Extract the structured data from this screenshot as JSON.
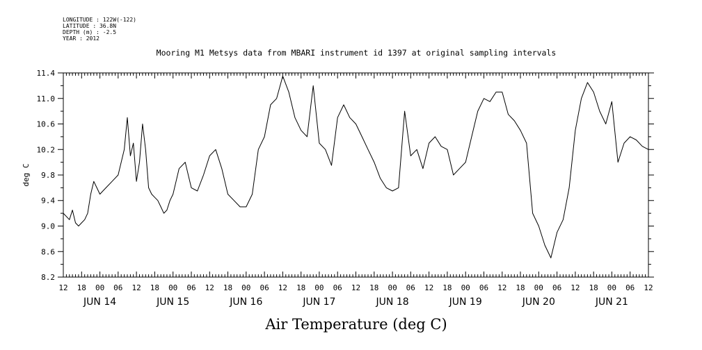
{
  "header": {
    "longitude": "LONGITUDE : 122W(-122)",
    "latitude": "LATITUDE : 36.8N",
    "depth": "DEPTH (m) : -2.5",
    "year": "YEAR : 2012"
  },
  "chart_data": {
    "type": "line",
    "title": "Mooring M1 Metsys data from MBARI instrument id 1397 at original sampling intervals",
    "xlabel": "Air Temperature (deg C)",
    "ylabel": "deg C",
    "ylim": [
      8.2,
      11.4
    ],
    "yticks": [
      "8.2",
      "8.6",
      "9.0",
      "9.4",
      "9.8",
      "10.2",
      "10.6",
      "11.0",
      "11.4"
    ],
    "xlim": [
      "2012-06-13T12:00",
      "2012-06-21T12:00"
    ],
    "hour_tick_labels": [
      "12",
      "18",
      "00",
      "06",
      "12",
      "18",
      "00",
      "06",
      "12",
      "18",
      "00",
      "06",
      "12",
      "18",
      "00",
      "06",
      "12",
      "18",
      "00",
      "06",
      "12",
      "18",
      "00",
      "06",
      "12",
      "18",
      "00",
      "06",
      "12",
      "18",
      "00",
      "06",
      "12"
    ],
    "day_labels": [
      "JUN 14",
      "JUN 15",
      "JUN 16",
      "JUN 17",
      "JUN 18",
      "JUN 19",
      "JUN 20",
      "JUN 21"
    ],
    "grid": false,
    "series": [
      {
        "x_hours_from_jun13_12": [
          0,
          2,
          3,
          4,
          5,
          6,
          7,
          8,
          9,
          10,
          11,
          12,
          13,
          14,
          16,
          18,
          20,
          21,
          22,
          23,
          24,
          25,
          26,
          27,
          28,
          29,
          30,
          31,
          32,
          33,
          34,
          35,
          36,
          38,
          40,
          42,
          44,
          46,
          48,
          50,
          52,
          54,
          56,
          58,
          60,
          62,
          64,
          66,
          68,
          70,
          72,
          74,
          76,
          78,
          80,
          82,
          84,
          86,
          88,
          90,
          92,
          94,
          96,
          98,
          100,
          102,
          104,
          106,
          108,
          110,
          112,
          114,
          116,
          118,
          120,
          122,
          124,
          126,
          128,
          130,
          132,
          134,
          136,
          138,
          140,
          142,
          144,
          146,
          148,
          150,
          152,
          154,
          156,
          158,
          160,
          162,
          164,
          166,
          168,
          170,
          172,
          174,
          176,
          178,
          180,
          182,
          184,
          186,
          188,
          190,
          192
        ],
        "y_deg_c": [
          9.2,
          9.1,
          9.25,
          9.05,
          9.0,
          9.05,
          9.1,
          9.2,
          9.5,
          9.7,
          9.6,
          9.5,
          9.55,
          9.6,
          9.7,
          9.8,
          10.2,
          10.7,
          10.1,
          10.3,
          9.7,
          10.0,
          10.6,
          10.2,
          9.6,
          9.5,
          9.45,
          9.4,
          9.3,
          9.2,
          9.25,
          9.4,
          9.5,
          9.9,
          10.0,
          9.6,
          9.55,
          9.8,
          10.1,
          10.2,
          9.9,
          9.5,
          9.4,
          9.3,
          9.3,
          9.5,
          10.2,
          10.4,
          10.9,
          11.0,
          11.35,
          11.1,
          10.7,
          10.5,
          10.4,
          11.2,
          10.3,
          10.2,
          9.95,
          10.7,
          10.9,
          10.7,
          10.6,
          10.4,
          10.2,
          10.0,
          9.75,
          9.6,
          9.55,
          9.6,
          10.8,
          10.1,
          10.2,
          9.9,
          10.3,
          10.4,
          10.25,
          10.2,
          9.8,
          9.9,
          10.0,
          10.4,
          10.8,
          11.0,
          10.95,
          11.1,
          11.1,
          10.75,
          10.65,
          10.5,
          10.3,
          9.2,
          9.0,
          8.7,
          8.5,
          8.9,
          9.1,
          9.6,
          10.5,
          11.0,
          11.25,
          11.1,
          10.8,
          10.6,
          10.95,
          10.0,
          10.3,
          10.4,
          10.35,
          10.25,
          10.2
        ]
      }
    ]
  }
}
